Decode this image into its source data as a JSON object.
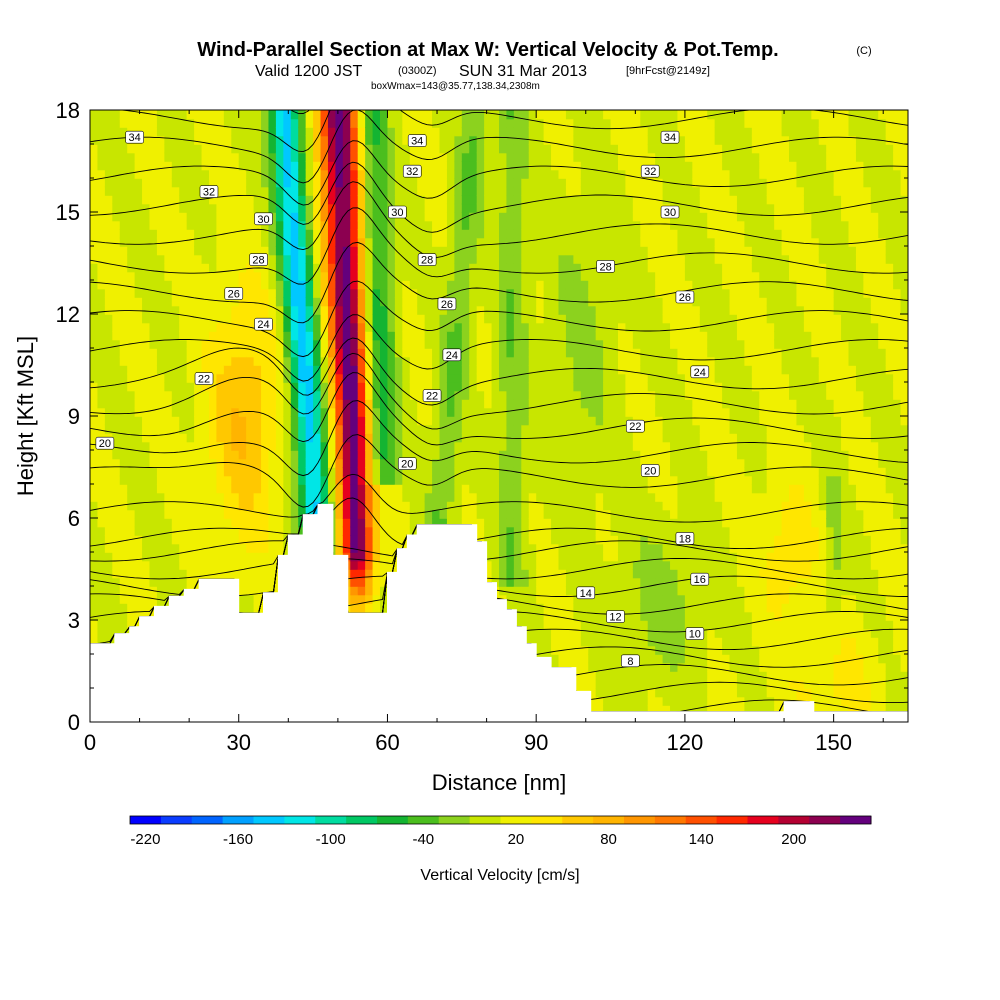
{
  "chart_data": {
    "type": "heatmap",
    "title": "Wind-Parallel Section at Max W: Vertical Velocity & Pot.Temp.",
    "title_mark": "(C)",
    "subtitle_parts": [
      "Valid 1200 JST",
      "(0300Z)",
      "SUN 31 Mar 2013",
      "[9hrFcst@2149z]"
    ],
    "subtitle2": "boxWmax=143@35.77,138.34,2308m",
    "xlabel": "Distance [nm]",
    "ylabel": "Height [Kft MSL]",
    "xlim": [
      0,
      165
    ],
    "ylim": [
      0,
      18
    ],
    "xticks": [
      "0",
      "30",
      "60",
      "90",
      "120",
      "150"
    ],
    "xtick_values": [
      0,
      30,
      60,
      90,
      120,
      150
    ],
    "yticks": [
      "0",
      "3",
      "6",
      "9",
      "12",
      "15",
      "18"
    ],
    "ytick_values": [
      0,
      3,
      6,
      9,
      12,
      15,
      18
    ],
    "colorbar": {
      "label": "Vertical Velocity [cm/s]",
      "min": -230,
      "max": 250,
      "step": 20,
      "tick_labels": [
        "-220",
        "-160",
        "-100",
        "-40",
        "20",
        "80",
        "140",
        "200"
      ],
      "tick_values": [
        -220,
        -160,
        -100,
        -40,
        20,
        80,
        140,
        200
      ],
      "colors": [
        "#0000ff",
        "#0a3cff",
        "#0064ff",
        "#00a0ff",
        "#00c8ff",
        "#00e6e6",
        "#00dca0",
        "#00c864",
        "#14b432",
        "#4bbe1e",
        "#8cd21e",
        "#c8e600",
        "#f0f000",
        "#ffe600",
        "#ffc800",
        "#ffb400",
        "#ff9600",
        "#ff7800",
        "#ff5000",
        "#ff2800",
        "#e6001e",
        "#b40032",
        "#8c0050",
        "#64007d"
      ]
    },
    "theta_contours": [
      {
        "label": "8",
        "value": 8
      },
      {
        "label": "10",
        "value": 10
      },
      {
        "label": "12",
        "value": 12
      },
      {
        "label": "14",
        "value": 14
      },
      {
        "label": "16",
        "value": 16
      },
      {
        "label": "18",
        "value": 18
      },
      {
        "label": "20",
        "value": 20
      },
      {
        "label": "22",
        "value": 22
      },
      {
        "label": "24",
        "value": 24
      },
      {
        "label": "26",
        "value": 26
      },
      {
        "label": "28",
        "value": 28
      },
      {
        "label": "30",
        "value": 30
      },
      {
        "label": "32",
        "value": 32
      },
      {
        "label": "34",
        "value": 34
      }
    ],
    "contour_labels": [
      {
        "text": "34",
        "x": 9,
        "y": 17.2
      },
      {
        "text": "32",
        "x": 24,
        "y": 15.6
      },
      {
        "text": "30",
        "x": 35,
        "y": 14.8
      },
      {
        "text": "28",
        "x": 34,
        "y": 13.6
      },
      {
        "text": "26",
        "x": 29,
        "y": 12.6
      },
      {
        "text": "24",
        "x": 35,
        "y": 11.7
      },
      {
        "text": "22",
        "x": 23,
        "y": 10.1
      },
      {
        "text": "20",
        "x": 3,
        "y": 8.2
      },
      {
        "text": "34",
        "x": 66,
        "y": 17.1
      },
      {
        "text": "32",
        "x": 65,
        "y": 16.2
      },
      {
        "text": "30",
        "x": 62,
        "y": 15.0
      },
      {
        "text": "28",
        "x": 68,
        "y": 13.6
      },
      {
        "text": "26",
        "x": 72,
        "y": 12.3
      },
      {
        "text": "24",
        "x": 73,
        "y": 10.8
      },
      {
        "text": "22",
        "x": 69,
        "y": 9.6
      },
      {
        "text": "20",
        "x": 64,
        "y": 7.6
      },
      {
        "text": "34",
        "x": 117,
        "y": 17.2
      },
      {
        "text": "32",
        "x": 113,
        "y": 16.2
      },
      {
        "text": "30",
        "x": 117,
        "y": 15.0
      },
      {
        "text": "28",
        "x": 104,
        "y": 13.4
      },
      {
        "text": "26",
        "x": 120,
        "y": 12.5
      },
      {
        "text": "24",
        "x": 123,
        "y": 10.3
      },
      {
        "text": "22",
        "x": 110,
        "y": 8.7
      },
      {
        "text": "20",
        "x": 113,
        "y": 7.4
      },
      {
        "text": "18",
        "x": 120,
        "y": 5.4
      },
      {
        "text": "16",
        "x": 123,
        "y": 4.2
      },
      {
        "text": "14",
        "x": 100,
        "y": 3.8
      },
      {
        "text": "12",
        "x": 106,
        "y": 3.1
      },
      {
        "text": "10",
        "x": 122,
        "y": 2.6
      },
      {
        "text": "8",
        "x": 109,
        "y": 1.8
      }
    ],
    "terrain_profile": {
      "x": [
        0,
        3,
        5,
        8,
        10,
        13,
        16,
        19,
        22,
        24,
        27,
        29,
        30,
        32,
        35,
        37,
        38,
        40,
        43,
        44,
        46,
        48,
        49,
        51,
        52,
        54,
        58,
        60,
        62,
        64,
        66,
        68,
        72,
        75,
        78,
        80,
        82,
        84,
        86,
        88,
        90,
        93,
        98,
        99,
        101,
        102,
        106,
        108,
        110,
        112,
        117,
        120,
        124,
        129,
        132,
        135,
        138,
        140,
        142,
        146,
        150,
        153,
        157,
        160,
        163,
        165
      ],
      "height": [
        2.3,
        2.3,
        2.6,
        2.8,
        3.1,
        3.4,
        3.7,
        3.9,
        4.2,
        4.2,
        4.2,
        4.2,
        3.2,
        3.2,
        3.8,
        3.8,
        4.9,
        5.5,
        6.1,
        6.1,
        6.4,
        6.4,
        4.9,
        4.9,
        3.2,
        3.2,
        3.2,
        4.4,
        5.1,
        5.5,
        5.8,
        5.8,
        5.8,
        5.8,
        5.3,
        4.1,
        3.6,
        3.3,
        2.8,
        2.3,
        1.9,
        1.6,
        0.9,
        0.9,
        0.3,
        0.3,
        0.3,
        0.3,
        0.3,
        0.3,
        0.3,
        0.3,
        0.3,
        0.3,
        0.3,
        0.3,
        0.3,
        0.6,
        0.6,
        0.3,
        0.3,
        0.3,
        0.3,
        0.3,
        0.3,
        0.3
      ]
    }
  }
}
